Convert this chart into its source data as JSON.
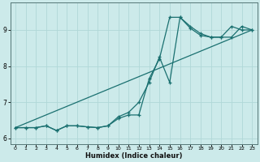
{
  "xlabel": "Humidex (Indice chaleur)",
  "bg_color": "#cceaea",
  "line_color": "#1a7070",
  "grid_color": "#b0d8d8",
  "xlim": [
    -0.5,
    23.5
  ],
  "ylim": [
    5.85,
    9.75
  ],
  "xticks": [
    0,
    1,
    2,
    3,
    4,
    5,
    6,
    7,
    8,
    9,
    10,
    11,
    12,
    13,
    14,
    15,
    16,
    17,
    18,
    19,
    20,
    21,
    22,
    23
  ],
  "yticks": [
    6,
    7,
    8,
    9
  ],
  "line1_x": [
    0,
    1,
    2,
    3,
    4,
    5,
    6,
    7,
    8,
    9,
    10,
    11,
    12,
    13,
    14,
    15,
    16,
    17,
    18,
    19,
    20,
    21,
    22,
    23
  ],
  "line1_y": [
    6.3,
    6.3,
    6.3,
    6.35,
    6.22,
    6.35,
    6.35,
    6.32,
    6.3,
    6.35,
    6.55,
    6.65,
    6.65,
    7.65,
    8.2,
    9.35,
    9.35,
    9.05,
    8.85,
    8.8,
    8.8,
    8.8,
    9.1,
    9.0
  ],
  "line2_x": [
    0,
    1,
    2,
    3,
    4,
    5,
    6,
    7,
    8,
    9,
    10,
    11,
    12,
    13,
    14,
    15,
    16,
    17,
    18,
    19,
    20,
    21,
    22,
    23
  ],
  "line2_y": [
    6.3,
    6.3,
    6.3,
    6.35,
    6.22,
    6.35,
    6.35,
    6.32,
    6.3,
    6.35,
    6.6,
    6.72,
    7.0,
    7.55,
    8.25,
    7.55,
    9.35,
    9.1,
    8.9,
    8.8,
    8.8,
    9.1,
    9.0,
    9.0
  ],
  "line3_x": [
    0,
    23
  ],
  "line3_y": [
    6.3,
    9.0
  ]
}
